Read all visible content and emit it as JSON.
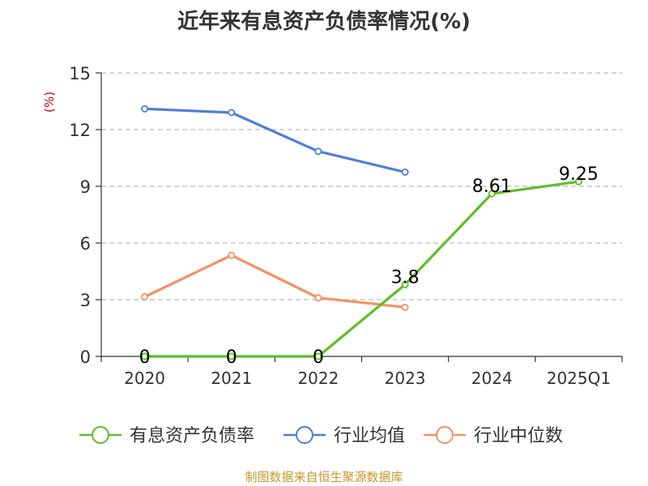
{
  "source_note": "制图数据来自恒生聚源数据库",
  "colors": {
    "grid": "#bbbbbb",
    "axis": "#333333",
    "tick_text": "#333333",
    "ylabel": "#cc0000",
    "data_label": "#000000"
  },
  "chart_data": {
    "type": "line",
    "title": "近年来有息资产负债率情况(%)",
    "ylabel": "(%)",
    "xlabel": "",
    "categories": [
      "2020",
      "2021",
      "2022",
      "2023",
      "2024",
      "2025Q1"
    ],
    "yticks": [
      "0",
      "3",
      "6",
      "9",
      "12",
      "15"
    ],
    "ylim": [
      0,
      15
    ],
    "grid": true,
    "legend_position": "bottom",
    "series": [
      {
        "name": "有息资产负债率",
        "color": "#5cbf2a",
        "values": [
          0,
          0,
          0,
          3.8,
          8.61,
          9.25
        ],
        "labels": [
          "0",
          "0",
          "0",
          "3.8",
          "8.61",
          "9.25"
        ]
      },
      {
        "name": "行业均值",
        "color": "#4f7fd6",
        "values": [
          13.1,
          12.9,
          10.85,
          9.75,
          null,
          null
        ],
        "labels": []
      },
      {
        "name": "行业中位数",
        "color": "#f59163",
        "values": [
          3.15,
          5.35,
          3.1,
          2.6,
          null,
          null
        ],
        "labels": []
      }
    ]
  }
}
